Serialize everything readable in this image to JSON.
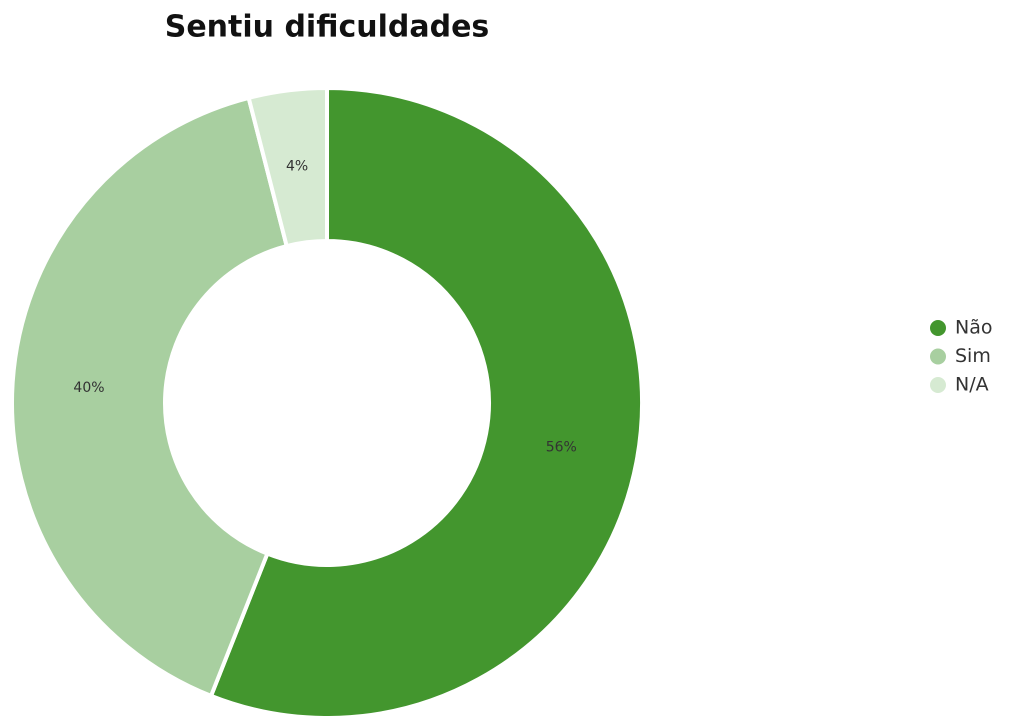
{
  "chart_data": {
    "type": "donut",
    "title": "Sentiu dificuldades",
    "categories": [
      "Não",
      "Sim",
      "N/A"
    ],
    "values": [
      56,
      40,
      4
    ],
    "value_labels": [
      "56%",
      "40%",
      "4%"
    ],
    "colors": [
      "#43962e",
      "#a8cfa0",
      "#d6ead2"
    ],
    "legend": "right"
  }
}
